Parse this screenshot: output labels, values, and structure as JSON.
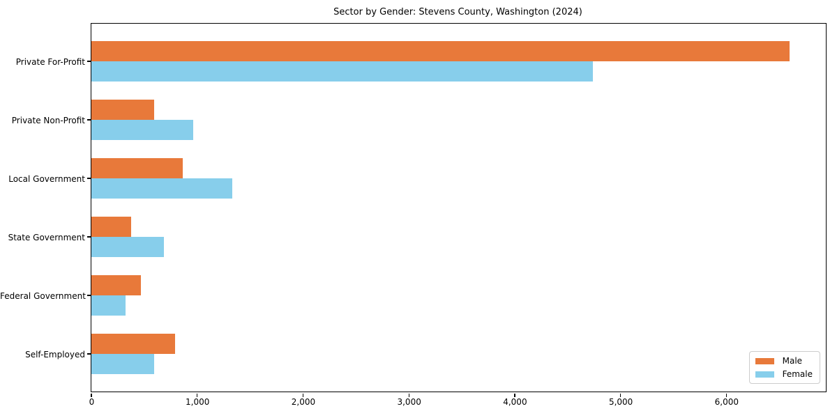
{
  "figure": {
    "background": "#ffffff"
  },
  "chart_data": {
    "type": "bar",
    "orientation": "horizontal",
    "title": "Sector by Gender: Stevens County, Washington (2024)",
    "categories": [
      "Private For-Profit",
      "Private Non-Profit",
      "Local Government",
      "State Government",
      "Federal Government",
      "Self-Employed"
    ],
    "series": [
      {
        "name": "Male",
        "color": "#e8793a",
        "values": [
          6600,
          590,
          860,
          375,
          470,
          790
        ]
      },
      {
        "name": "Female",
        "color": "#87ceeb",
        "values": [
          4740,
          960,
          1330,
          685,
          320,
          595
        ]
      }
    ],
    "xlabel": "",
    "ylabel": "",
    "xlim": [
      0,
      6940
    ],
    "xticks": [
      0,
      1000,
      2000,
      3000,
      4000,
      5000,
      6000
    ],
    "xtick_labels": [
      "0",
      "1,000",
      "2,000",
      "3,000",
      "4,000",
      "5,000",
      "6,000"
    ],
    "grid": false,
    "legend": {
      "position": "lower right",
      "entries": [
        "Male",
        "Female"
      ]
    }
  }
}
